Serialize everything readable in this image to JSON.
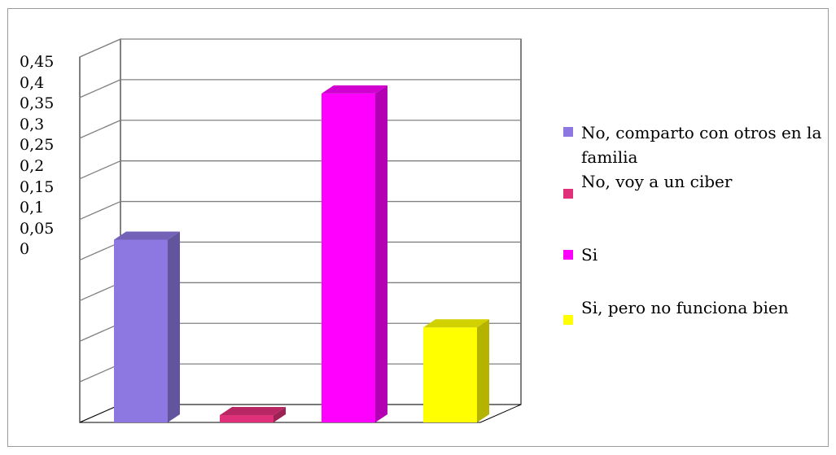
{
  "chart_data": {
    "type": "bar",
    "categories": [
      "No, comparto con otros en la familia",
      "No, voy a un ciber",
      "Si",
      "Si, pero no funciona bien"
    ],
    "values": [
      0.25,
      0.01,
      0.45,
      0.13
    ],
    "colors": [
      "#8c78e0",
      "#e0307a",
      "#ff00ff",
      "#ffff00"
    ],
    "yticks": [
      "0,45",
      "0,4",
      "0,35",
      "0,3",
      "0,25",
      "0,2",
      "0,15",
      "0,1",
      "0,05",
      "0"
    ],
    "ylim": [
      0,
      0.5
    ],
    "grid": true,
    "three_d": true,
    "legend_position": "right",
    "legend": [
      {
        "label": "No, comparto con otros en la familia",
        "color": "#8c78e0"
      },
      {
        "label": "No, voy a un ciber",
        "color": "#e0307a"
      },
      {
        "label": "Si",
        "color": "#ff00ff"
      },
      {
        "label": "Si, pero no funciona bien",
        "color": "#ffff00"
      }
    ]
  }
}
